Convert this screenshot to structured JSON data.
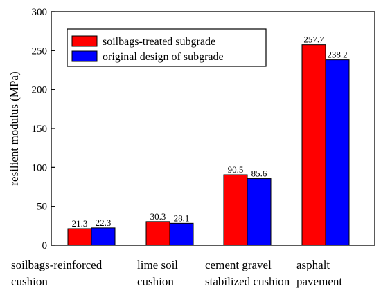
{
  "chart_data": {
    "type": "bar",
    "xlabel": "",
    "ylabel": "resilient modulus  (MPa)",
    "ylim": [
      0,
      300
    ],
    "yticks": [
      "0",
      "50",
      "100",
      "150",
      "200",
      "250",
      "300"
    ],
    "grid": false,
    "legend_position": "top-left",
    "categories": [
      [
        "soilbags-reinforced",
        "cushion"
      ],
      [
        "lime soil",
        "cushion"
      ],
      [
        "cement gravel",
        "stabilized cushion"
      ],
      [
        "asphalt",
        "pavement"
      ]
    ],
    "series": [
      {
        "name": "soilbags-treated subgrade",
        "color": "#ff0000",
        "values": [
          21.3,
          30.3,
          90.5,
          257.7
        ],
        "labels": [
          "21.3",
          "30.3",
          "90.5",
          "257.7"
        ]
      },
      {
        "name": "original design of subgrade",
        "color": "#0000ff",
        "values": [
          22.3,
          28.1,
          85.6,
          238.2
        ],
        "labels": [
          "22.3",
          "28.1",
          "85.6",
          "238.2"
        ]
      }
    ]
  }
}
